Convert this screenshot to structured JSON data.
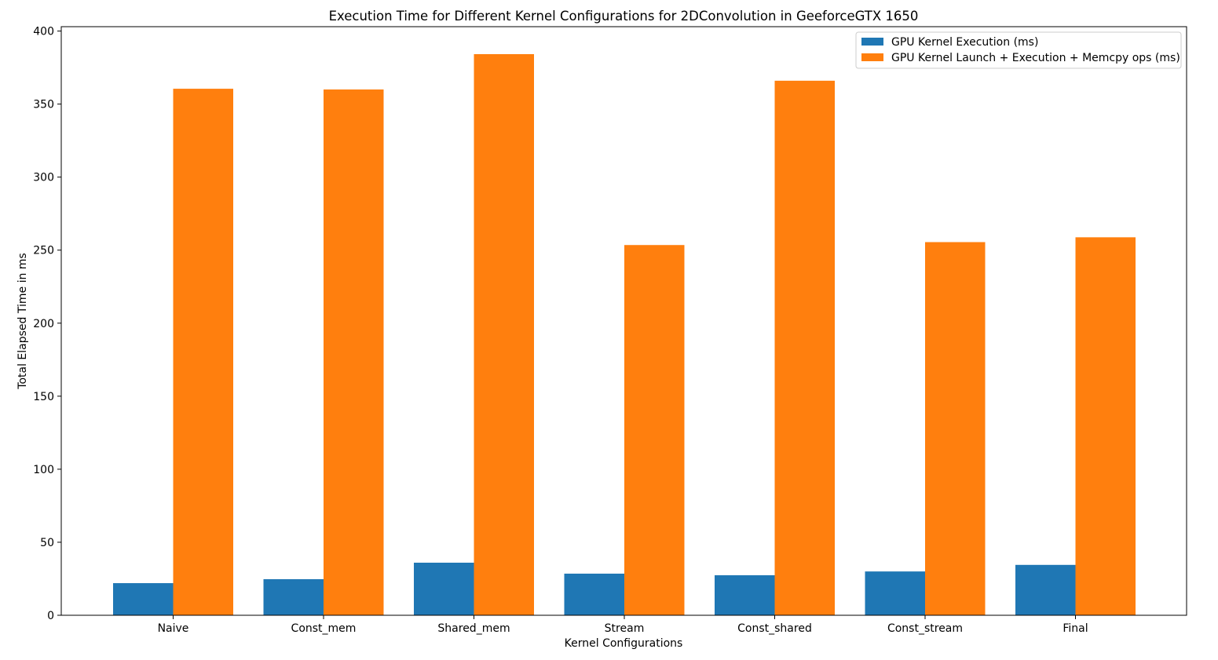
{
  "chart_data": {
    "type": "bar",
    "title": "Execution Time for Different Kernel Configurations for 2DConvolution in GeeforceGTX 1650",
    "xlabel": "Kernel Configurations",
    "ylabel": "Total Elapsed Time in ms",
    "categories": [
      "Naive",
      "Const_mem",
      "Shared_mem",
      "Stream",
      "Const_shared",
      "Const_stream",
      "Final"
    ],
    "series": [
      {
        "name": "GPU Kernel Execution (ms)",
        "color": "#1f77b4",
        "values": [
          22,
          24.7,
          36,
          28.5,
          27.4,
          30,
          34.5
        ]
      },
      {
        "name": "GPU Kernel Launch + Execution + Memcpy ops (ms)",
        "color": "#ff7f0e",
        "values": [
          360.5,
          360,
          384.2,
          253.5,
          366,
          255.5,
          258.8
        ]
      }
    ],
    "ylim": [
      0,
      403
    ],
    "yticks": [
      0,
      50,
      100,
      150,
      200,
      250,
      300,
      350,
      400
    ],
    "grid": false,
    "legend_position": "top-right"
  }
}
